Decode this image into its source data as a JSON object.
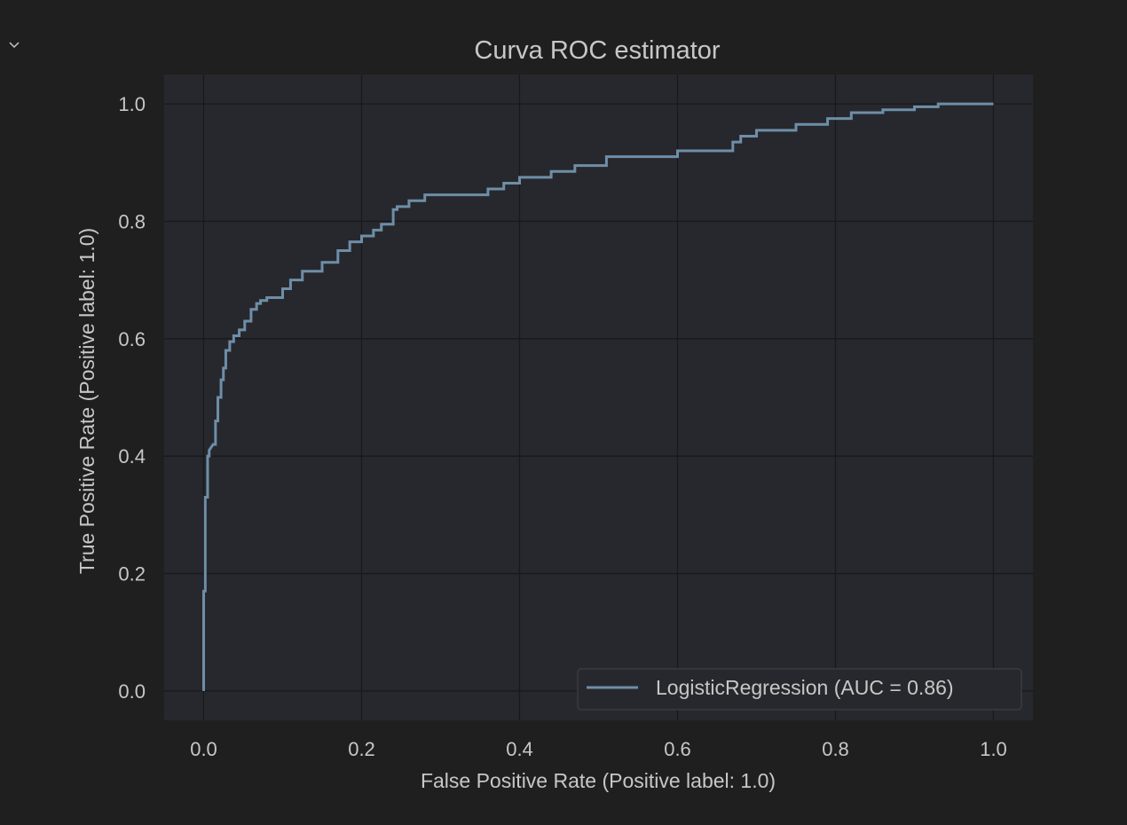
{
  "output_panel": {
    "collapse_icon": "chevron-down-icon"
  },
  "colors": {
    "background": "#1f1f1f",
    "plot_background": "#27282d",
    "grid": "#18191c",
    "text": "#c7c7c7",
    "line": "#6e8ea8"
  },
  "chart_data": {
    "type": "line",
    "title": "Curva ROC estimator",
    "xlabel": "False Positive Rate (Positive label: 1.0)",
    "ylabel": "True Positive Rate (Positive label: 1.0)",
    "xlim": [
      -0.05,
      1.05
    ],
    "ylim": [
      -0.05,
      1.05
    ],
    "xticks": [
      "0.0",
      "0.2",
      "0.4",
      "0.6",
      "0.8",
      "1.0"
    ],
    "yticks": [
      "0.0",
      "0.2",
      "0.4",
      "0.6",
      "0.8",
      "1.0"
    ],
    "grid": true,
    "legend_position": "lower-right",
    "series": [
      {
        "name": "LogisticRegression (AUC = 0.86)",
        "x": [
          0,
          0,
          0.002,
          0.002,
          0.005,
          0.005,
          0.007,
          0.007,
          0.012,
          0.015,
          0.015,
          0.018,
          0.018,
          0.022,
          0.022,
          0.025,
          0.025,
          0.028,
          0.028,
          0.033,
          0.033,
          0.038,
          0.038,
          0.045,
          0.045,
          0.052,
          0.052,
          0.06,
          0.06,
          0.067,
          0.067,
          0.072,
          0.072,
          0.08,
          0.08,
          0.1,
          0.1,
          0.11,
          0.11,
          0.125,
          0.125,
          0.15,
          0.15,
          0.17,
          0.17,
          0.185,
          0.185,
          0.2,
          0.2,
          0.215,
          0.215,
          0.225,
          0.225,
          0.24,
          0.24,
          0.245,
          0.245,
          0.26,
          0.26,
          0.28,
          0.28,
          0.3,
          0.36,
          0.36,
          0.38,
          0.38,
          0.4,
          0.4,
          0.44,
          0.44,
          0.47,
          0.47,
          0.51,
          0.51,
          0.6,
          0.6,
          0.67,
          0.67,
          0.68,
          0.68,
          0.7,
          0.7,
          0.75,
          0.75,
          0.79,
          0.79,
          0.82,
          0.82,
          0.86,
          0.86,
          0.9,
          0.9,
          0.93,
          0.93,
          1.0
        ],
        "y": [
          0,
          0.17,
          0.17,
          0.33,
          0.33,
          0.4,
          0.4,
          0.41,
          0.42,
          0.42,
          0.46,
          0.46,
          0.5,
          0.5,
          0.53,
          0.53,
          0.55,
          0.55,
          0.58,
          0.58,
          0.595,
          0.595,
          0.605,
          0.605,
          0.615,
          0.615,
          0.63,
          0.63,
          0.65,
          0.65,
          0.66,
          0.66,
          0.665,
          0.665,
          0.67,
          0.67,
          0.685,
          0.685,
          0.7,
          0.7,
          0.715,
          0.715,
          0.73,
          0.73,
          0.75,
          0.75,
          0.765,
          0.765,
          0.775,
          0.775,
          0.785,
          0.785,
          0.795,
          0.795,
          0.82,
          0.82,
          0.825,
          0.825,
          0.835,
          0.835,
          0.845,
          0.845,
          0.845,
          0.855,
          0.855,
          0.865,
          0.865,
          0.875,
          0.875,
          0.885,
          0.885,
          0.895,
          0.895,
          0.91,
          0.91,
          0.92,
          0.92,
          0.935,
          0.935,
          0.945,
          0.945,
          0.955,
          0.955,
          0.965,
          0.965,
          0.975,
          0.975,
          0.985,
          0.985,
          0.99,
          0.99,
          0.995,
          0.995,
          1.0,
          1.0
        ]
      }
    ]
  }
}
